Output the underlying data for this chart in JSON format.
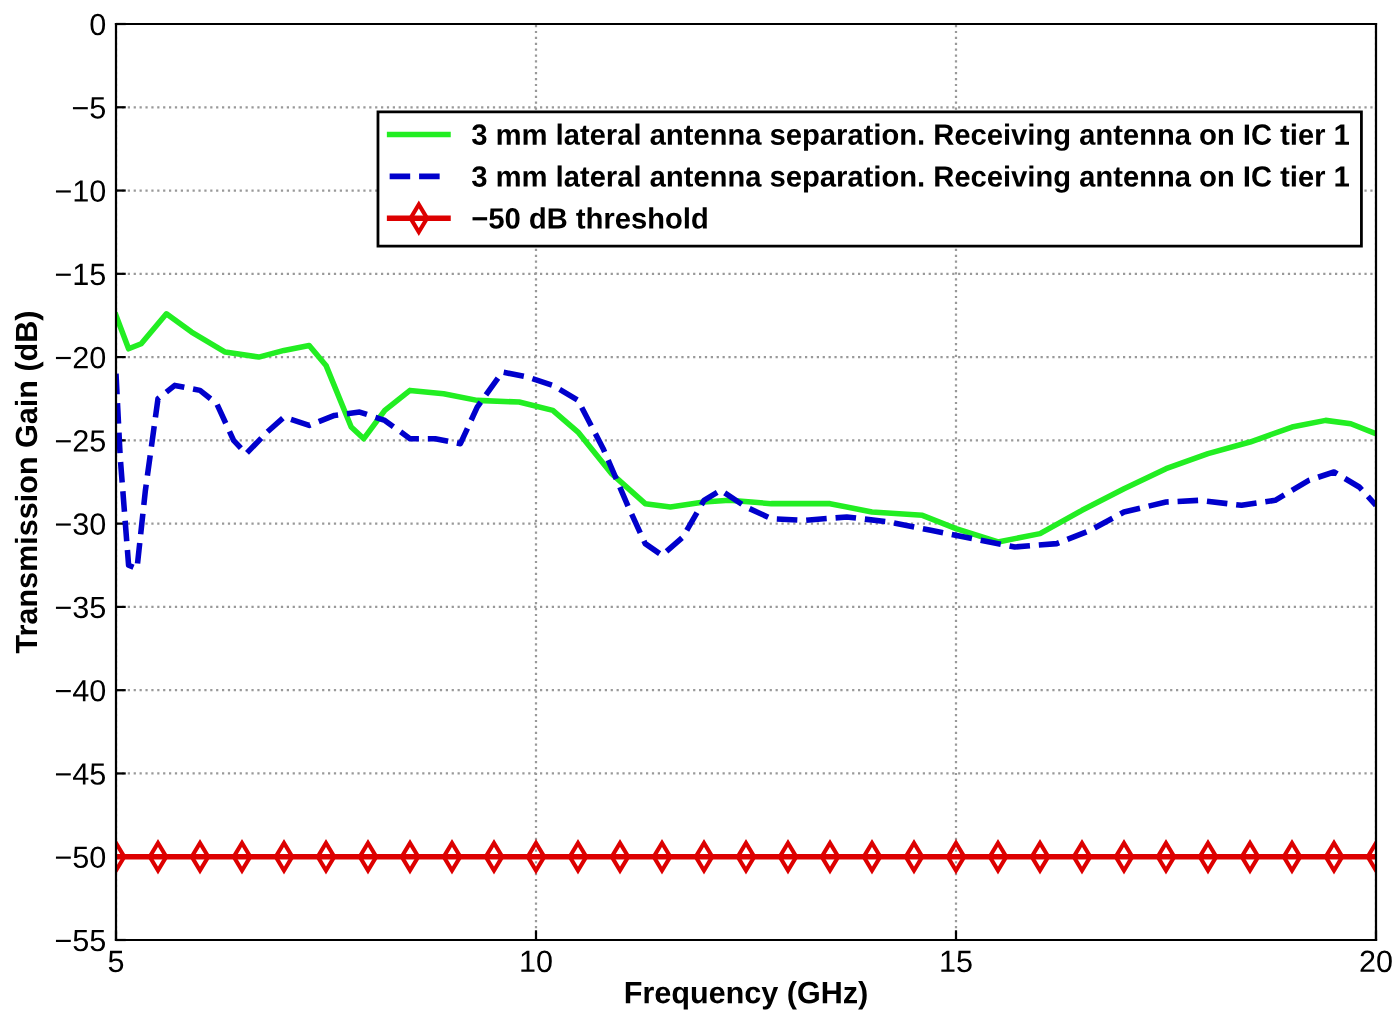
{
  "chart_data": {
    "type": "line",
    "xlabel": "Frequency (GHz)",
    "ylabel": "Transmission Gain (dB)",
    "xlim": [
      5,
      20
    ],
    "ylim": [
      -55,
      0
    ],
    "xticks": [
      5,
      10,
      15,
      20
    ],
    "yticks": [
      -55,
      -50,
      -45,
      -40,
      -35,
      -30,
      -25,
      -20,
      -15,
      -10,
      -5,
      0
    ],
    "grid": true,
    "legend": "top right",
    "series": [
      {
        "name": "3 mm lateral antenna separation. Receiving antenna on IC tier 1",
        "color": "#22ee22",
        "line_style": "solid",
        "marker": "none",
        "x": [
          5,
          5.15,
          5.3,
          5.6,
          5.9,
          6.3,
          6.7,
          7.0,
          7.3,
          7.5,
          7.8,
          7.95,
          8.2,
          8.5,
          8.9,
          9.3,
          9.8,
          10.2,
          10.5,
          10.9,
          11.3,
          11.6,
          12.0,
          12.3,
          12.8,
          13.5,
          14.0,
          14.6,
          15.0,
          15.5,
          16.0,
          16.5,
          17.0,
          17.5,
          18.0,
          18.5,
          19.0,
          19.4,
          19.7,
          20
        ],
        "values": [
          -17.5,
          -19.5,
          -19.2,
          -17.4,
          -18.5,
          -19.7,
          -20.0,
          -19.6,
          -19.3,
          -20.5,
          -24.2,
          -24.9,
          -23.2,
          -22.0,
          -22.2,
          -22.6,
          -22.7,
          -23.2,
          -24.5,
          -27,
          -28.8,
          -29.0,
          -28.7,
          -28.6,
          -28.8,
          -28.8,
          -29.3,
          -29.5,
          -30.3,
          -31.1,
          -30.6,
          -29.2,
          -27.9,
          -26.7,
          -25.8,
          -25.1,
          -24.2,
          -23.8,
          -24.0,
          -24.6
        ]
      },
      {
        "name": "3 mm lateral antenna separation. Receiving antenna on IC tier 1",
        "color": "#0000cc",
        "line_style": "dashed",
        "marker": "none",
        "x": [
          5,
          5.05,
          5.15,
          5.25,
          5.35,
          5.5,
          5.7,
          6.0,
          6.2,
          6.4,
          6.55,
          6.8,
          7.0,
          7.3,
          7.6,
          7.9,
          8.2,
          8.5,
          8.8,
          9.1,
          9.3,
          9.6,
          9.9,
          10.2,
          10.5,
          10.8,
          11.1,
          11.3,
          11.5,
          11.75,
          12.0,
          12.2,
          12.5,
          12.8,
          13.2,
          13.7,
          14.2,
          14.7,
          15.2,
          15.7,
          16.2,
          16.6,
          17.0,
          17.5,
          17.9,
          18.4,
          18.8,
          19.2,
          19.5,
          19.8,
          20
        ],
        "values": [
          -21,
          -26,
          -32.5,
          -32.7,
          -28,
          -22.5,
          -21.7,
          -22.0,
          -22.8,
          -25,
          -25.8,
          -24.5,
          -23.6,
          -24.1,
          -23.5,
          -23.3,
          -23.8,
          -24.9,
          -24.9,
          -25.2,
          -23,
          -20.9,
          -21.2,
          -21.7,
          -22.6,
          -25.5,
          -29,
          -31.2,
          -31.9,
          -30.8,
          -28.6,
          -28.0,
          -29.0,
          -29.7,
          -29.8,
          -29.6,
          -29.9,
          -30.4,
          -30.9,
          -31.4,
          -31.2,
          -30.4,
          -29.3,
          -28.7,
          -28.6,
          -28.9,
          -28.6,
          -27.4,
          -26.9,
          -27.8,
          -28.9
        ]
      },
      {
        "name": "−50 dB threshold",
        "color": "#dd0000",
        "line_style": "solid",
        "marker": "diamond",
        "x": [
          5,
          5.5,
          6,
          6.5,
          7,
          7.5,
          8,
          8.5,
          9,
          9.5,
          10,
          10.5,
          11,
          11.5,
          12,
          12.5,
          13,
          13.5,
          14,
          14.5,
          15,
          15.5,
          16,
          16.5,
          17,
          17.5,
          18,
          18.5,
          19,
          19.5,
          20
        ],
        "values": [
          -50,
          -50,
          -50,
          -50,
          -50,
          -50,
          -50,
          -50,
          -50,
          -50,
          -50,
          -50,
          -50,
          -50,
          -50,
          -50,
          -50,
          -50,
          -50,
          -50,
          -50,
          -50,
          -50,
          -50,
          -50,
          -50,
          -50,
          -50,
          -50,
          -50,
          -50
        ]
      }
    ]
  }
}
